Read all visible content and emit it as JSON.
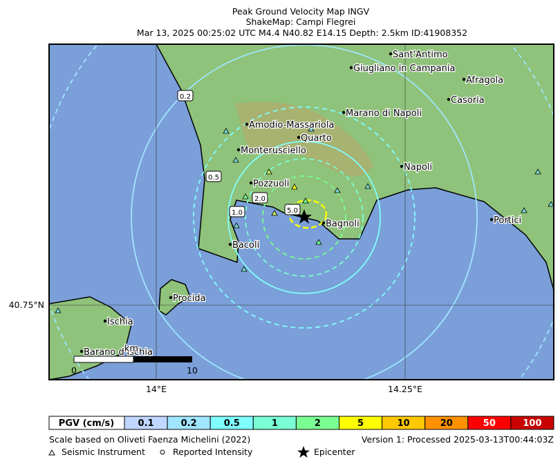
{
  "header": {
    "title": "Peak Ground Velocity Map INGV",
    "subtitle": "ShakeMap: Campi Flegrei",
    "event": "Mar 13, 2025 00:25:02 UTC M4.4 N40.82 E14.15 Depth: 2.5km ID:41908352"
  },
  "map": {
    "axis_labels": {
      "x": [
        "14°E",
        "14.25°E"
      ],
      "y": [
        "40.75°N"
      ]
    },
    "places": [
      "Sant'Antimo",
      "Giugliano in Campania",
      "Afragola",
      "Casoria",
      "Marano di Napoli",
      "Amodio-Massariola",
      "Quarto",
      "Monterusciello",
      "Napoli",
      "Pozzuoli",
      "Bagnoli",
      "Portici",
      "Bacoli",
      "Procida",
      "Ischia",
      "Barano d'Ischia"
    ],
    "contour_labels": [
      "0.2",
      "0.5",
      "2.0",
      "5.0",
      "1.0"
    ],
    "scale_bar": {
      "start": "0",
      "end": "10",
      "unit": "km"
    }
  },
  "legend": {
    "title": "PGV (cm/s)",
    "cells": [
      {
        "label": "0.1",
        "color": "#bfd7ff"
      },
      {
        "label": "0.2",
        "color": "#a0e6ff"
      },
      {
        "label": "0.5",
        "color": "#80ffff"
      },
      {
        "label": "1",
        "color": "#7affd4"
      },
      {
        "label": "2",
        "color": "#7aff93"
      },
      {
        "label": "5",
        "color": "#ffff00"
      },
      {
        "label": "10",
        "color": "#ffc800"
      },
      {
        "label": "20",
        "color": "#ff9100"
      },
      {
        "label": "50",
        "color": "#ff0000"
      },
      {
        "label": "100",
        "color": "#c80000"
      }
    ]
  },
  "footer": {
    "scale_note": "Scale based on Oliveti Faenza Michelini (2022)",
    "version": "Version 1: Processed 2025-03-13T00:44:03Z",
    "instrument": "Seismic Instrument",
    "intensity": "Reported Intensity",
    "epicenter": "Epicenter"
  }
}
